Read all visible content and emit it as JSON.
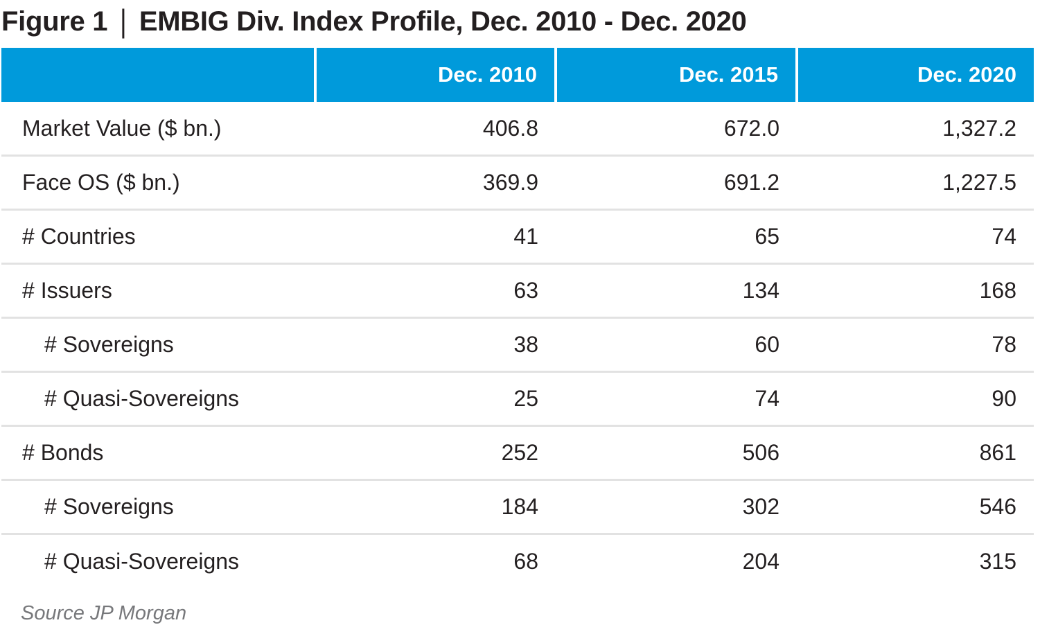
{
  "header": {
    "figure_label": "Figure 1",
    "separator": "|",
    "title_text": "EMBIG Div. Index Profile, Dec. 2010 - Dec. 2020"
  },
  "footer": {
    "source": "Source JP Morgan"
  },
  "chart_data": {
    "type": "table",
    "title": "Figure 1 | EMBIG Div. Index Profile, Dec. 2010 - Dec. 2020",
    "columns": [
      "",
      "Dec. 2010",
      "Dec. 2015",
      "Dec. 2020"
    ],
    "rows": [
      {
        "label": "Market Value ($ bn.)",
        "indent": 0,
        "values": [
          "406.8",
          "672.0",
          "1,327.2"
        ]
      },
      {
        "label": "Face OS ($ bn.)",
        "indent": 0,
        "values": [
          "369.9",
          "691.2",
          "1,227.5"
        ]
      },
      {
        "label": "# Countries",
        "indent": 0,
        "values": [
          "41",
          "65",
          "74"
        ]
      },
      {
        "label": "# Issuers",
        "indent": 0,
        "values": [
          "63",
          "134",
          "168"
        ]
      },
      {
        "label": "# Sovereigns",
        "indent": 1,
        "values": [
          "38",
          "60",
          "78"
        ]
      },
      {
        "label": "# Quasi-Sovereigns",
        "indent": 1,
        "values": [
          "25",
          "74",
          "90"
        ]
      },
      {
        "label": "# Bonds",
        "indent": 0,
        "values": [
          "252",
          "506",
          "861"
        ]
      },
      {
        "label": "# Sovereigns",
        "indent": 1,
        "values": [
          "184",
          "302",
          "546"
        ]
      },
      {
        "label": "# Quasi-Sovereigns",
        "indent": 1,
        "values": [
          "68",
          "204",
          "315"
        ]
      }
    ],
    "source": "Source JP Morgan",
    "layout": {
      "header_align": "right",
      "values_align": "right",
      "row_dividers": true,
      "column_dividers_header_only": true
    },
    "colors": {
      "header_bg": "#009ADB",
      "header_text": "#FFFFFF",
      "body_text": "#231F20",
      "divider": "#E2E2E2",
      "source_text": "#77787B"
    }
  }
}
